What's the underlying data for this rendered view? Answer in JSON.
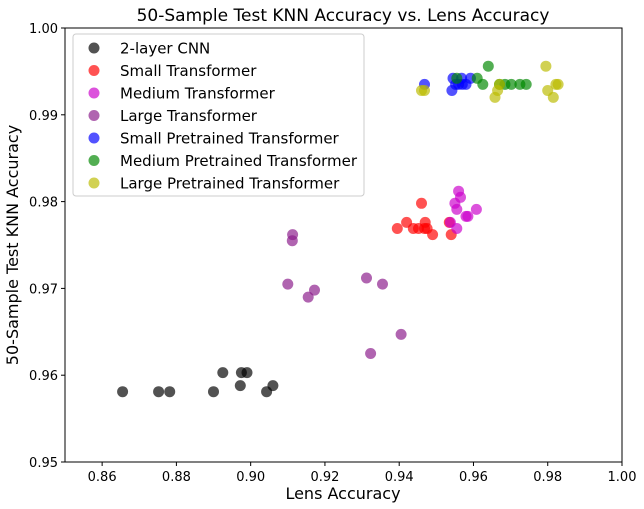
{
  "chart_data": {
    "type": "scatter",
    "title": "50-Sample Test KNN Accuracy vs. Lens Accuracy",
    "xlabel": "Lens Accuracy",
    "ylabel": "50-Sample Test KNN Accuracy",
    "xlim": [
      0.85,
      1.0
    ],
    "ylim": [
      0.95,
      1.0
    ],
    "xticks": [
      "0.86",
      "0.88",
      "0.90",
      "0.92",
      "0.94",
      "0.96",
      "0.98",
      "1.00"
    ],
    "yticks": [
      "0.95",
      "0.96",
      "0.97",
      "0.98",
      "0.99",
      "1.00"
    ],
    "grid": false,
    "legend_position": "top-left",
    "series": [
      {
        "name": "2-layer CNN",
        "color": "#000000",
        "points": [
          [
            0.8655,
            0.9581
          ],
          [
            0.8752,
            0.9581
          ],
          [
            0.8782,
            0.9581
          ],
          [
            0.89,
            0.9581
          ],
          [
            0.8925,
            0.9603
          ],
          [
            0.8972,
            0.9588
          ],
          [
            0.8975,
            0.9603
          ],
          [
            0.899,
            0.9603
          ],
          [
            0.9043,
            0.9581
          ],
          [
            0.906,
            0.9588
          ]
        ]
      },
      {
        "name": "Small Transformer",
        "color": "#ff0000",
        "points": [
          [
            0.9395,
            0.9769
          ],
          [
            0.942,
            0.9776
          ],
          [
            0.9438,
            0.9769
          ],
          [
            0.9452,
            0.9769
          ],
          [
            0.946,
            0.9798
          ],
          [
            0.9468,
            0.9769
          ],
          [
            0.947,
            0.9776
          ],
          [
            0.9475,
            0.9769
          ],
          [
            0.949,
            0.9762
          ],
          [
            0.9535,
            0.9776
          ],
          [
            0.954,
            0.9762
          ]
        ]
      },
      {
        "name": "Medium Transformer",
        "color": "#cc00cc",
        "points": [
          [
            0.9538,
            0.9776
          ],
          [
            0.955,
            0.9798
          ],
          [
            0.9555,
            0.9769
          ],
          [
            0.9555,
            0.9791
          ],
          [
            0.956,
            0.9812
          ],
          [
            0.9565,
            0.9805
          ],
          [
            0.958,
            0.9783
          ],
          [
            0.9585,
            0.9783
          ],
          [
            0.9608,
            0.9791
          ]
        ]
      },
      {
        "name": "Large Transformer",
        "color": "#8b1a8b",
        "points": [
          [
            0.91,
            0.9705
          ],
          [
            0.9112,
            0.9755
          ],
          [
            0.9113,
            0.9762
          ],
          [
            0.9155,
            0.969
          ],
          [
            0.9172,
            0.9698
          ],
          [
            0.9312,
            0.9712
          ],
          [
            0.9323,
            0.9625
          ],
          [
            0.9355,
            0.9705
          ],
          [
            0.9405,
            0.9647
          ]
        ]
      },
      {
        "name": "Small Pretrained Transformer",
        "color": "#0000ff",
        "points": [
          [
            0.9468,
            0.9935
          ],
          [
            0.9542,
            0.9928
          ],
          [
            0.9545,
            0.9942
          ],
          [
            0.9552,
            0.9935
          ],
          [
            0.956,
            0.9935
          ],
          [
            0.9568,
            0.9942
          ],
          [
            0.957,
            0.9935
          ],
          [
            0.958,
            0.9935
          ],
          [
            0.9592,
            0.9942
          ]
        ]
      },
      {
        "name": "Medium Pretrained Transformer",
        "color": "#008800",
        "points": [
          [
            0.9555,
            0.9942
          ],
          [
            0.961,
            0.9942
          ],
          [
            0.9625,
            0.9935
          ],
          [
            0.964,
            0.9956
          ],
          [
            0.967,
            0.9935
          ],
          [
            0.9685,
            0.9935
          ],
          [
            0.9702,
            0.9935
          ],
          [
            0.9725,
            0.9935
          ],
          [
            0.9742,
            0.9935
          ]
        ]
      },
      {
        "name": "Large Pretrained Transformer",
        "color": "#bbbb00",
        "points": [
          [
            0.946,
            0.9928
          ],
          [
            0.9468,
            0.9928
          ],
          [
            0.9658,
            0.992
          ],
          [
            0.9665,
            0.9928
          ],
          [
            0.967,
            0.9935
          ],
          [
            0.9795,
            0.9956
          ],
          [
            0.98,
            0.9928
          ],
          [
            0.9815,
            0.992
          ],
          [
            0.9822,
            0.9935
          ],
          [
            0.9828,
            0.9935
          ]
        ]
      }
    ]
  }
}
